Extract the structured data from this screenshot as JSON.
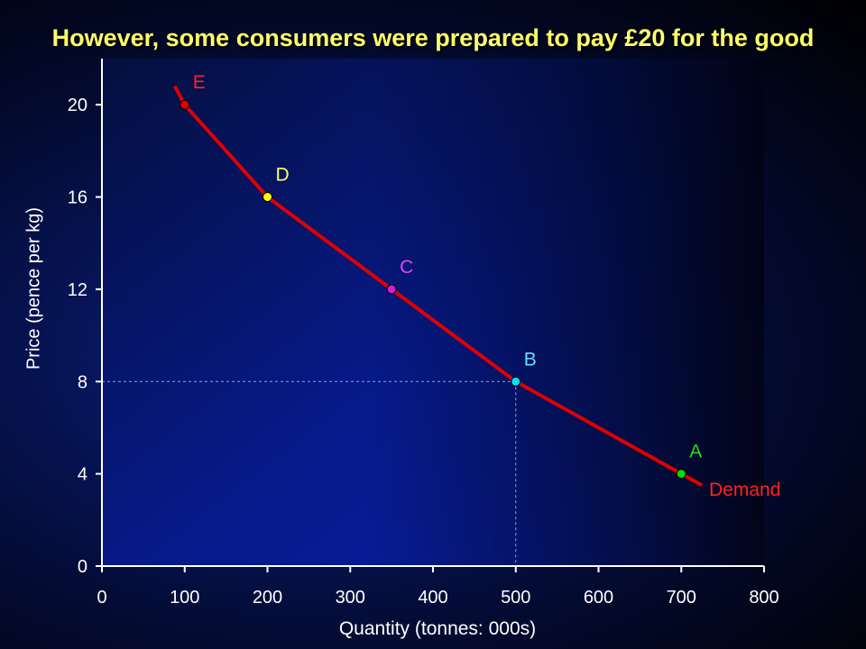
{
  "slide": {
    "title": "However, some consumers were prepared to pay £20  for the good"
  },
  "colors": {
    "title": "#ffff66",
    "curve": "#e00000",
    "axis_text": "#ffffff",
    "guide": "#7fa8ff"
  },
  "chart_data": {
    "type": "line",
    "title": "",
    "xlabel": "Quantity (tonnes: 000s)",
    "ylabel": "Price (pence per kg)",
    "xlim": [
      0,
      800
    ],
    "ylim": [
      0,
      22
    ],
    "xticks": [
      "0",
      "100",
      "200",
      "300",
      "400",
      "500",
      "600",
      "700",
      "800"
    ],
    "yticks": [
      "0",
      "4",
      "8",
      "12",
      "16",
      "20"
    ],
    "series": [
      {
        "name": "Demand",
        "color": "#e00000",
        "x": [
          88,
          100,
          200,
          350,
          500,
          700,
          725
        ],
        "y": [
          20.8,
          20,
          16,
          12,
          8,
          4,
          3.5
        ]
      }
    ],
    "points": [
      {
        "label": "E",
        "x": 100,
        "y": 20,
        "color": "#e00000",
        "label_color": "#ff2222"
      },
      {
        "label": "D",
        "x": 200,
        "y": 16,
        "color": "#ffff00",
        "label_color": "#ffff66"
      },
      {
        "label": "C",
        "x": 350,
        "y": 12,
        "color": "#d020d0",
        "label_color": "#dd44ff"
      },
      {
        "label": "B",
        "x": 500,
        "y": 8,
        "color": "#00e0ff",
        "label_color": "#66ddff"
      },
      {
        "label": "A",
        "x": 700,
        "y": 4,
        "color": "#00dd00",
        "label_color": "#22dd22"
      }
    ],
    "guides": [
      {
        "x": 500,
        "y": 8,
        "style": "dashed"
      }
    ],
    "grid": false
  }
}
